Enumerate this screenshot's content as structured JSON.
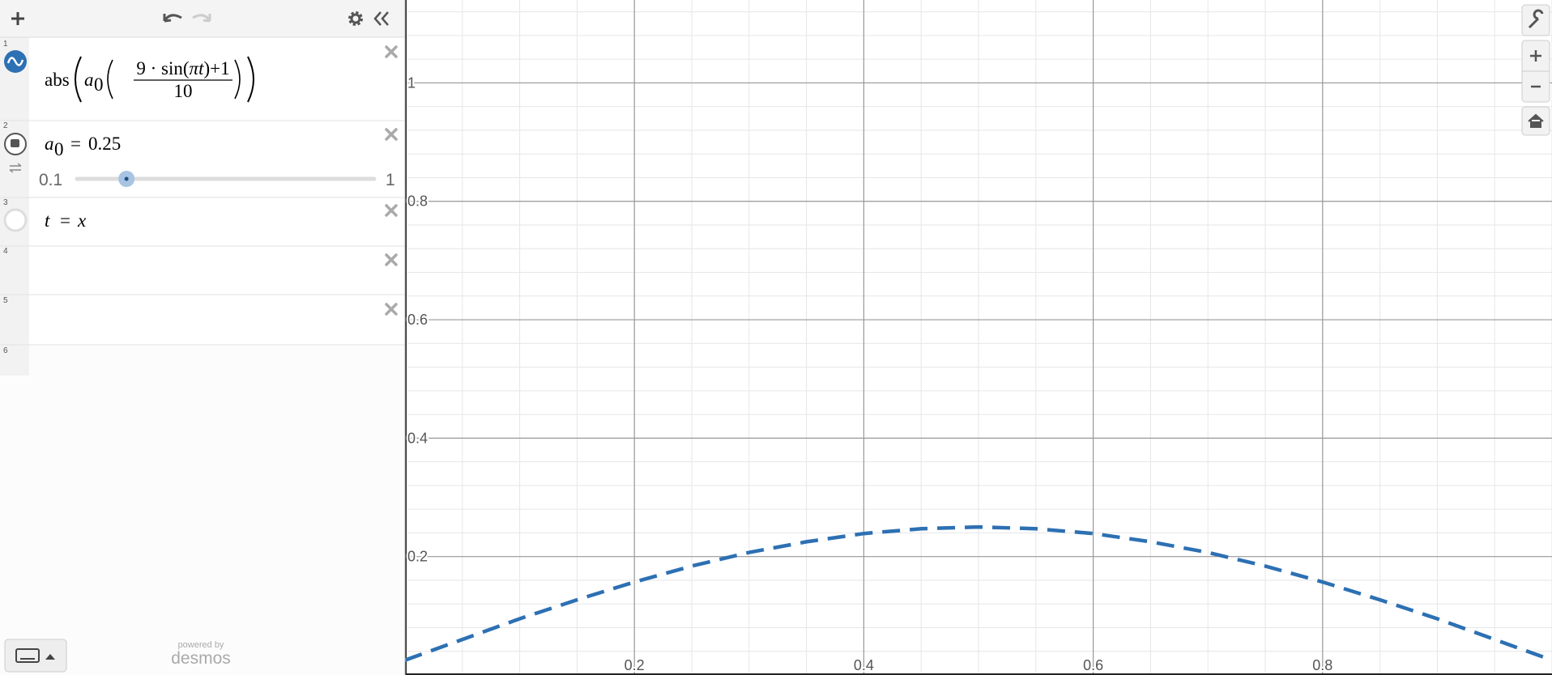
{
  "expressions": [
    {
      "number": "1",
      "color": "#2d70b3",
      "func": "abs",
      "var": "a",
      "sub": "0",
      "numerator": [
        "9 · sin(",
        "πt",
        ")+1"
      ],
      "denominator": "10"
    },
    {
      "number": "2",
      "var": "a",
      "sub": "0",
      "eq": "=",
      "value": 0.25,
      "slider_min": 0.1,
      "slider_max": 1
    },
    {
      "number": "3",
      "lhs": "t",
      "eq": "=",
      "rhs": "x"
    },
    {
      "number": "4"
    },
    {
      "number": "5"
    },
    {
      "number": "6"
    }
  ],
  "branding": {
    "line1": "powered by",
    "line2": "desmos"
  },
  "graph": {
    "xlim": [
      0,
      1
    ],
    "ylim": [
      0,
      1.14
    ],
    "xticks": [
      0.2,
      0.4,
      0.6,
      0.8
    ],
    "yticks": [
      0.2,
      0.4,
      0.6,
      0.8,
      1
    ],
    "x_minor_divisions": 4,
    "y_minor_divisions": 5,
    "grid": true,
    "curve": {
      "color": "#2d70b3",
      "dashed": true,
      "x": [
        0,
        0.05,
        0.1,
        0.15,
        0.2,
        0.25,
        0.3,
        0.35,
        0.4,
        0.45,
        0.5,
        0.55,
        0.6,
        0.65,
        0.7,
        0.75,
        0.8,
        0.85,
        0.9,
        0.95,
        1
      ],
      "y": [
        0.025,
        0.06,
        0.095,
        0.127,
        0.157,
        0.184,
        0.207,
        0.225,
        0.239,
        0.247,
        0.25,
        0.247,
        0.239,
        0.225,
        0.207,
        0.184,
        0.157,
        0.127,
        0.095,
        0.06,
        0.025
      ]
    }
  }
}
